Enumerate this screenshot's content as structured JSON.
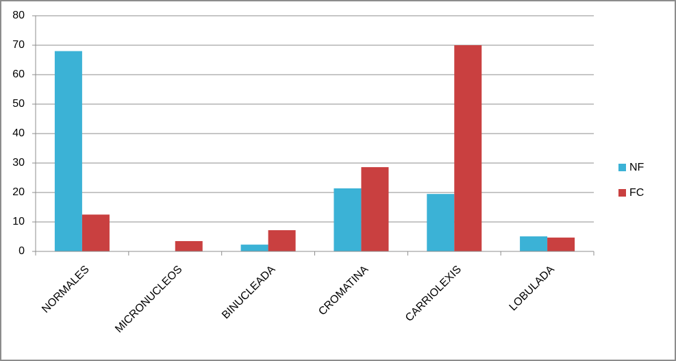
{
  "chart_data": {
    "type": "bar",
    "categories": [
      "NORMALES",
      "MICRONUCLEOS",
      "BINUCLEADA",
      "CROMATINA",
      "CARRIOLEXIS",
      "LOBULADA"
    ],
    "series": [
      {
        "name": "NF",
        "color": "#3bb2d6",
        "values": [
          68,
          0,
          2.3,
          21.4,
          19.5,
          5.1
        ]
      },
      {
        "name": "FC",
        "color": "#c94040",
        "values": [
          12.5,
          3.5,
          7.2,
          28.6,
          70,
          4.7
        ]
      }
    ],
    "ylim": [
      0,
      80
    ],
    "yticks": [
      0,
      10,
      20,
      30,
      40,
      50,
      60,
      70,
      80
    ],
    "grid": true,
    "legend": "right"
  }
}
